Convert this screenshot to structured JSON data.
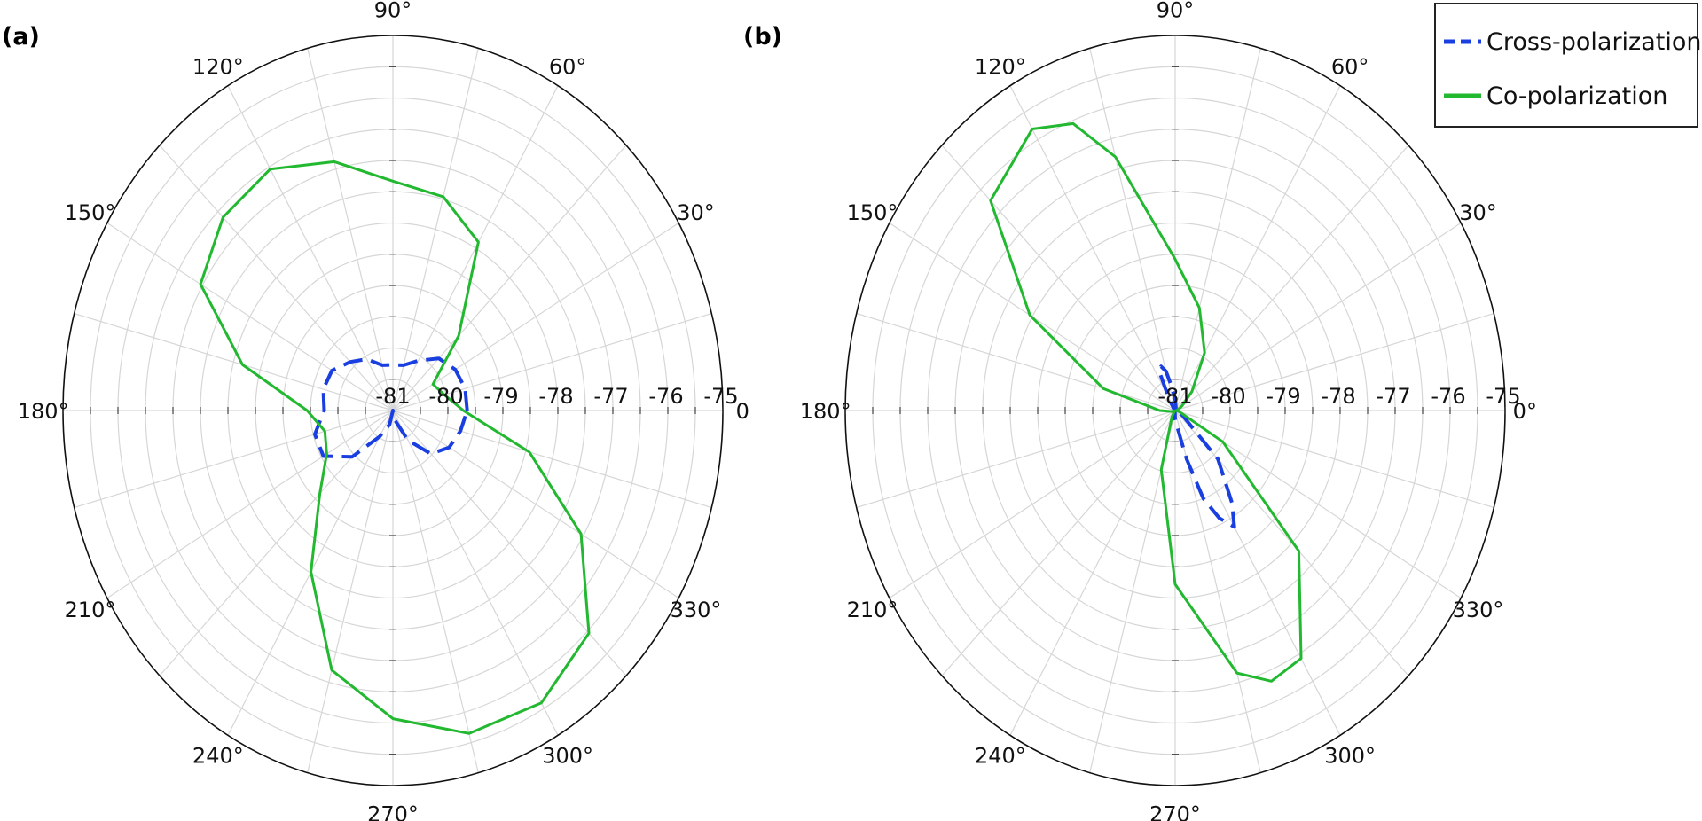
{
  "legend": {
    "items": [
      {
        "label": "Cross-polarization",
        "color": "#1a3fe0",
        "style": "dashed"
      },
      {
        "label": "Co-polarization",
        "color": "#22b830",
        "style": "solid"
      }
    ]
  },
  "chart_data": [
    {
      "type": "polar-line",
      "panel_label": "(a)",
      "rlim": [
        -81,
        -75
      ],
      "grid": true,
      "radial_tick_labels": [
        "-81",
        "-80",
        "-79",
        "-78",
        "-77",
        "-76",
        "-75"
      ],
      "angle_tick_labels": [
        {
          "deg": 0,
          "label": "0"
        },
        {
          "deg": 30,
          "label": "30°"
        },
        {
          "deg": 60,
          "label": "60°"
        },
        {
          "deg": 90,
          "label": "90°"
        },
        {
          "deg": 120,
          "label": "120°"
        },
        {
          "deg": 150,
          "label": "150°"
        },
        {
          "deg": 180,
          "label": "180°"
        },
        {
          "deg": 210,
          "label": "210°"
        },
        {
          "deg": 240,
          "label": "240°"
        },
        {
          "deg": 270,
          "label": "270°"
        },
        {
          "deg": 300,
          "label": "300°"
        },
        {
          "deg": 330,
          "label": "330°"
        }
      ],
      "series": [
        {
          "name": "Cross-polarization",
          "color": "#1a3fe0",
          "dash": true,
          "theta": [
            0,
            15,
            30,
            45,
            60,
            75,
            90,
            105,
            120,
            135,
            150,
            165,
            180,
            195,
            210,
            225,
            240,
            255,
            270,
            285,
            300,
            315,
            330,
            345
          ],
          "r": [
            -79.65,
            -79.64,
            -79.69,
            -79.82,
            -80.08,
            -80.25,
            -80.27,
            -80.25,
            -80.05,
            -79.9,
            -79.72,
            -79.69,
            -79.75,
            -79.53,
            -79.54,
            -79.95,
            -80.52,
            -80.77,
            -81.0,
            -80.83,
            -80.45,
            -80.02,
            -79.82,
            -79.73
          ]
        },
        {
          "name": "Co-polarization",
          "color": "#22b830",
          "dash": false,
          "theta": [
            0,
            15,
            30,
            45,
            60,
            75,
            90,
            105,
            120,
            135,
            150,
            165,
            180,
            195,
            210,
            225,
            240,
            255,
            270,
            285,
            300,
            315,
            330,
            345
          ],
          "r": [
            -79.72,
            -80.03,
            -80.16,
            -79.31,
            -77.89,
            -77.46,
            -77.33,
            -76.88,
            -76.54,
            -76.63,
            -76.96,
            -78.17,
            -79.44,
            -79.72,
            -79.61,
            -79.12,
            -78.02,
            -76.7,
            -76.07,
            -75.65,
            -75.6,
            -75.96,
            -77.05,
            -78.43
          ]
        }
      ]
    },
    {
      "type": "polar-line",
      "panel_label": "(b)",
      "rlim": [
        -81,
        -75
      ],
      "grid": true,
      "radial_tick_labels": [
        "-81",
        "-80",
        "-79",
        "-78",
        "-77",
        "-76",
        "-75"
      ],
      "angle_tick_labels": [
        {
          "deg": 0,
          "label": "0°"
        },
        {
          "deg": 30,
          "label": "30°"
        },
        {
          "deg": 60,
          "label": "60°"
        },
        {
          "deg": 90,
          "label": "90°"
        },
        {
          "deg": 120,
          "label": "120°"
        },
        {
          "deg": 150,
          "label": "150°"
        },
        {
          "deg": 180,
          "label": "180°"
        },
        {
          "deg": 210,
          "label": "210°"
        },
        {
          "deg": 240,
          "label": "240°"
        },
        {
          "deg": 270,
          "label": "270°"
        },
        {
          "deg": 300,
          "label": "300°"
        },
        {
          "deg": 330,
          "label": "330°"
        }
      ],
      "series": [
        {
          "name": "Cross-polarization",
          "color": "#1a3fe0",
          "dash": true,
          "theta": [
            0,
            15,
            30,
            45,
            60,
            75,
            90,
            100,
            105,
            110,
            115,
            120,
            135,
            150,
            165,
            180,
            195,
            210,
            225,
            240,
            255,
            270,
            285,
            290,
            295,
            300,
            305,
            315,
            330,
            345
          ],
          "r": [
            -81.0,
            -81.0,
            -81.0,
            -81.0,
            -80.98,
            -80.95,
            -80.82,
            -80.6,
            -80.35,
            -80.25,
            -80.35,
            -80.75,
            -80.97,
            -81.0,
            -81.0,
            -81.0,
            -81.0,
            -81.0,
            -81.0,
            -81.0,
            -80.98,
            -80.85,
            -80.2,
            -79.5,
            -79.1,
            -78.85,
            -79.2,
            -79.9,
            -80.85,
            -81.0
          ]
        },
        {
          "name": "Co-polarization",
          "color": "#22b830",
          "dash": false,
          "theta": [
            0,
            15,
            30,
            45,
            60,
            75,
            90,
            105,
            112,
            120,
            135,
            150,
            165,
            180,
            195,
            210,
            225,
            240,
            255,
            270,
            285,
            292,
            300,
            315,
            330,
            345
          ],
          "r": [
            -80.98,
            -80.95,
            -80.86,
            -80.57,
            -79.93,
            -79.3,
            -78.58,
            -76.8,
            -76.05,
            -75.8,
            -76.25,
            -77.95,
            -79.65,
            -80.72,
            -80.94,
            -80.99,
            -80.98,
            -80.88,
            -80.02,
            -78.22,
            -76.65,
            -76.33,
            -76.42,
            -77.82,
            -80.0,
            -80.92
          ]
        }
      ]
    }
  ]
}
